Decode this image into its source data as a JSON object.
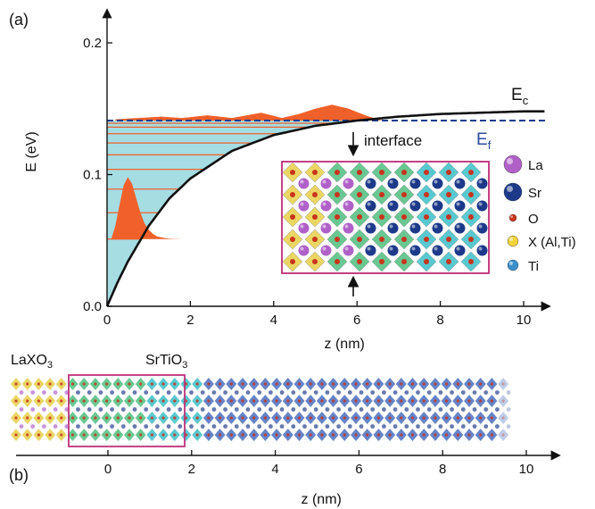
{
  "figure": {
    "panel_a_label": "(a)",
    "panel_b_label": "(b)",
    "interface_label": "interface",
    "ec_label_main": "E",
    "ec_label_sub": "c",
    "ef_label_main": "E",
    "ef_label_sub": "f",
    "b_left_label_main": "LaXO",
    "b_left_label_sub": "3",
    "b_mid_label_main": "SrTiO",
    "b_mid_label_sub": "3"
  },
  "legend": [
    {
      "label": "La",
      "color": "#b061c8"
    },
    {
      "label": "Sr",
      "color": "#1d3a8a"
    },
    {
      "label": "O",
      "color": "#c8341e"
    },
    {
      "label": "X (Al,Ti)",
      "color": "#f0d43a"
    },
    {
      "label": "Ti",
      "color": "#3a8fc8"
    }
  ],
  "colors": {
    "well_fill": "#a5dde3",
    "wavefunction": "#f0602a",
    "band_edge": "#111111",
    "fermi": "#1f3b8f",
    "inset_border": "#c0307a",
    "octa_yellow": "#e8cf4a",
    "octa_green": "#4fbf7e",
    "octa_cyan": "#3cc0c8",
    "octa_blue": "#4a6fc0"
  },
  "chart_data": [
    {
      "type": "line",
      "panel": "(a)",
      "xlabel": "z (nm)",
      "ylabel": "E (eV)",
      "xlim": [
        0,
        10.5
      ],
      "ylim": [
        0,
        0.2
      ],
      "xticks": [
        0,
        2,
        4,
        6,
        8,
        10
      ],
      "yticks": [
        0.0,
        0.1,
        0.2
      ],
      "ytick_labels": [
        "0.0",
        "0.1",
        "0.2"
      ],
      "grid": false,
      "series": [
        {
          "name": "Ec",
          "x": [
            0,
            0.25,
            0.5,
            1,
            1.5,
            2,
            3,
            4,
            5,
            6,
            7,
            8,
            9,
            10,
            10.5
          ],
          "y": [
            0.0,
            0.018,
            0.034,
            0.061,
            0.082,
            0.097,
            0.118,
            0.13,
            0.137,
            0.141,
            0.144,
            0.146,
            0.147,
            0.148,
            0.148
          ]
        },
        {
          "name": "Ef",
          "x": [
            0,
            10.5
          ],
          "y": [
            0.141,
            0.141
          ]
        }
      ],
      "subband_levels": [
        0.051,
        0.071,
        0.089,
        0.104,
        0.115,
        0.124,
        0.131,
        0.136,
        0.139
      ],
      "ground_state_wavefunction": {
        "baseline": 0.051,
        "x": [
          0.1,
          0.2,
          0.3,
          0.4,
          0.5,
          0.6,
          0.7,
          0.8,
          0.9,
          1.0,
          1.1,
          1.2,
          1.35,
          1.5,
          1.8
        ],
        "amplitude": [
          0.0,
          0.01,
          0.026,
          0.041,
          0.047,
          0.042,
          0.031,
          0.02,
          0.012,
          0.007,
          0.004,
          0.002,
          0.001,
          0.0003,
          0.0
        ]
      },
      "excited_state_density": {
        "baseline": 0.141,
        "x": [
          0.2,
          1.3,
          1.8,
          2.4,
          3.0,
          3.7,
          4.2,
          4.6,
          5.0,
          5.4,
          5.8,
          6.2,
          6.6
        ],
        "amplitude": [
          0.001,
          0.003,
          0.002,
          0.004,
          0.002,
          0.006,
          0.002,
          0.005,
          0.009,
          0.012,
          0.009,
          0.004,
          0.0
        ]
      },
      "interface_position": 5.9
    },
    {
      "type": "axis",
      "panel": "(b)",
      "xlabel": "z (nm)",
      "xlim": [
        -2.2,
        10.9
      ],
      "xticks": [
        0,
        2,
        4,
        6,
        8,
        10
      ]
    }
  ]
}
